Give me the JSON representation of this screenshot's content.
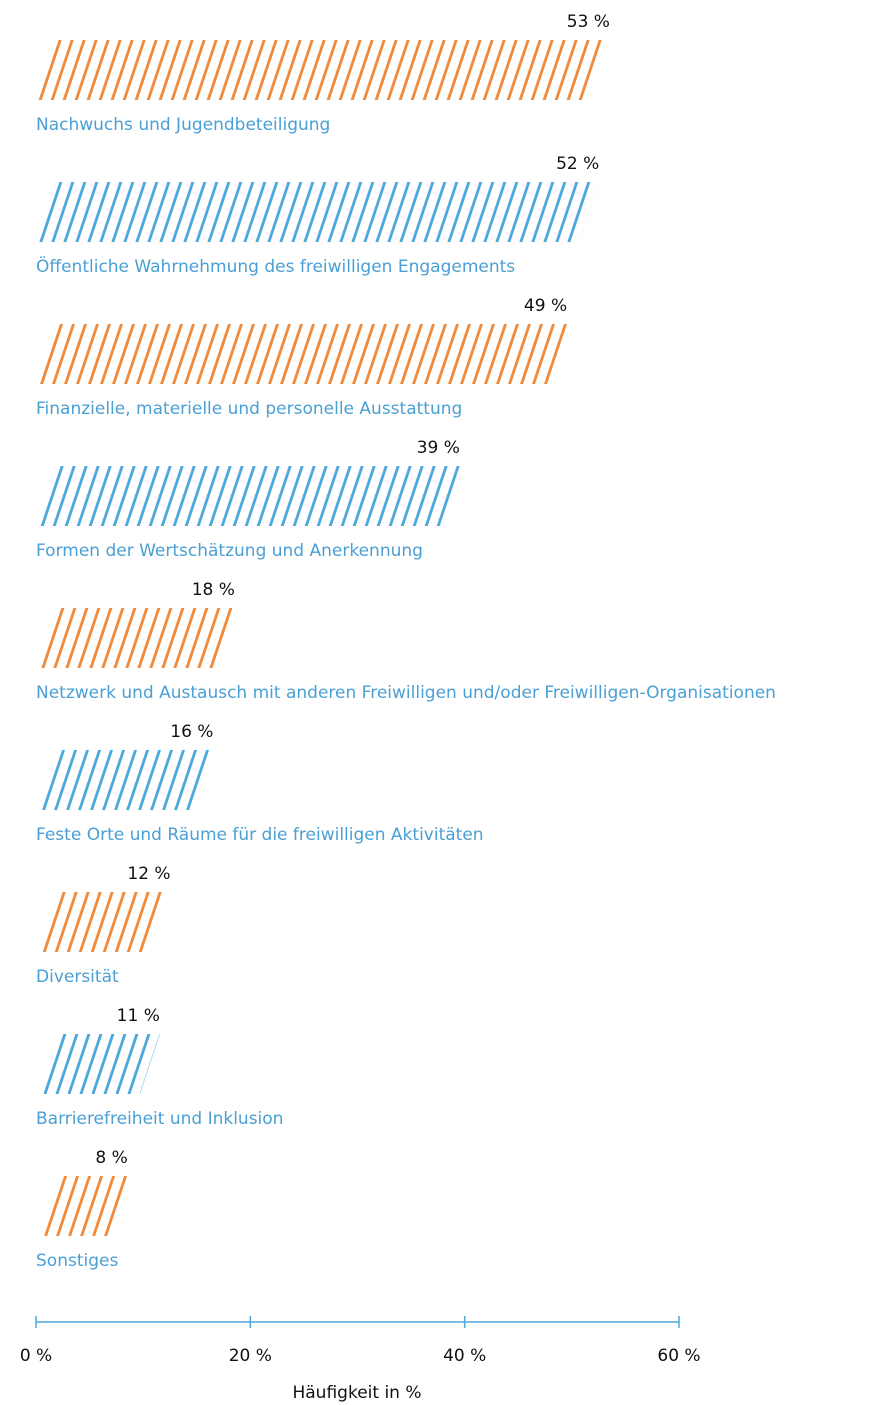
{
  "chart_data": {
    "type": "hbar",
    "categories": [
      "Nachwuchs und Jugendbeteiligung",
      "Öffentliche Wahrnehmung des freiwilligen Engagements",
      "Finanzielle, materielle und personelle Ausstattung",
      "Formen der Wertschätzung und Anerkennung",
      "Netzwerk und Austausch mit anderen Freiwilligen und/oder Freiwilligen-Organisationen",
      "Feste Orte und Räume für die freiwilligen Aktivitäten",
      "Diversität",
      "Barrierefreiheit und Inklusion",
      "Sonstiges"
    ],
    "values": [
      53,
      52,
      49,
      39,
      18,
      16,
      12,
      11,
      8
    ],
    "value_labels": [
      "53 %",
      "52 %",
      "49 %",
      "39 %",
      "18 %",
      "16 %",
      "12 %",
      "11 %",
      "8 %"
    ],
    "colors": [
      "#f08a3c",
      "#4ea8dc",
      "#f08a3c",
      "#4ea8dc",
      "#f08a3c",
      "#4ea8dc",
      "#f08a3c",
      "#4ea8dc",
      "#f08a3c"
    ],
    "xlim": [
      0,
      60
    ],
    "xticks": [
      {
        "value": 0,
        "label": "0 %"
      },
      {
        "value": 20,
        "label": "20 %"
      },
      {
        "value": 40,
        "label": "40 %"
      },
      {
        "value": 60,
        "label": "60 %"
      }
    ],
    "x_label": "Häufigkeit in %"
  }
}
